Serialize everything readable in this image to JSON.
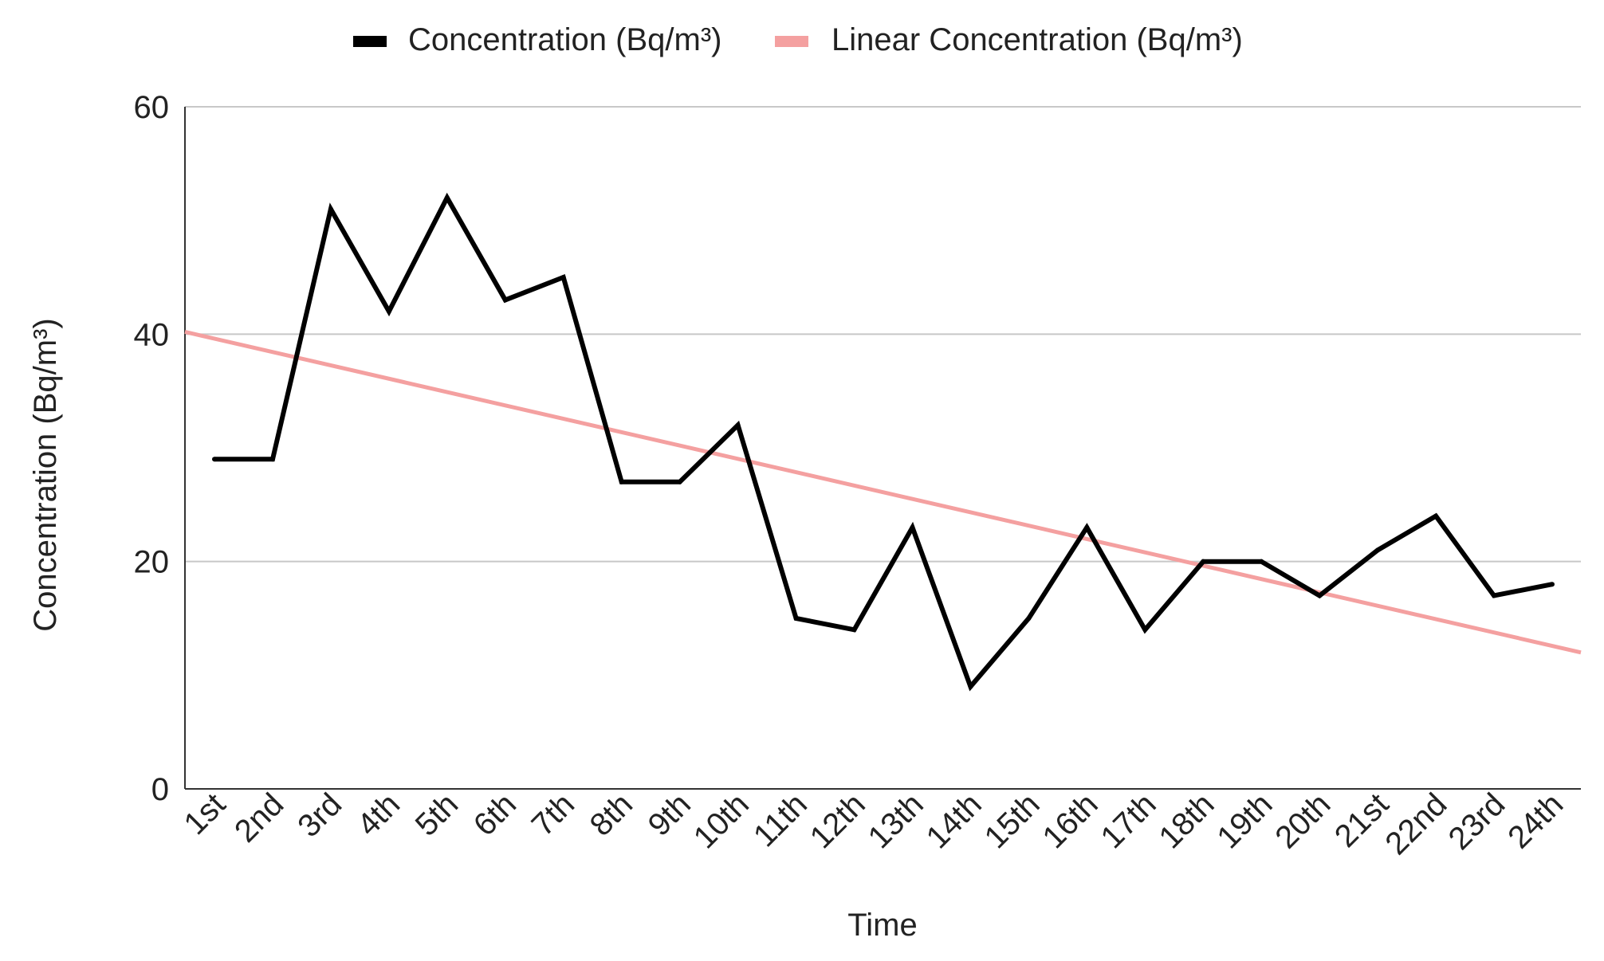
{
  "chart_data": {
    "type": "line",
    "title": "",
    "xlabel": "Time",
    "ylabel": "Concentration (Bq/m³)",
    "ylim": [
      0,
      60
    ],
    "yticks": [
      0,
      20,
      40,
      60
    ],
    "grid": true,
    "legend_position": "top-center",
    "categories": [
      "1st",
      "2nd",
      "3rd",
      "4th",
      "5th",
      "6th",
      "7th",
      "8th",
      "9th",
      "10th",
      "11th",
      "12th",
      "13th",
      "14th",
      "15th",
      "16th",
      "17th",
      "18th",
      "19th",
      "20th",
      "21st",
      "22nd",
      "23rd",
      "24th"
    ],
    "series": [
      {
        "name": "Concentration (Bq/m³)",
        "color": "#000000",
        "values": [
          29,
          29,
          51,
          42,
          52,
          43,
          45,
          27,
          27,
          32,
          15,
          14,
          23,
          9,
          15,
          23,
          14,
          20,
          20,
          17,
          21,
          24,
          17,
          18
        ]
      },
      {
        "name": "Linear Concentration (Bq/m³)",
        "color": "#f4a0a0",
        "trendline": true,
        "start_value": 40.2,
        "end_value": 12.0
      }
    ]
  }
}
